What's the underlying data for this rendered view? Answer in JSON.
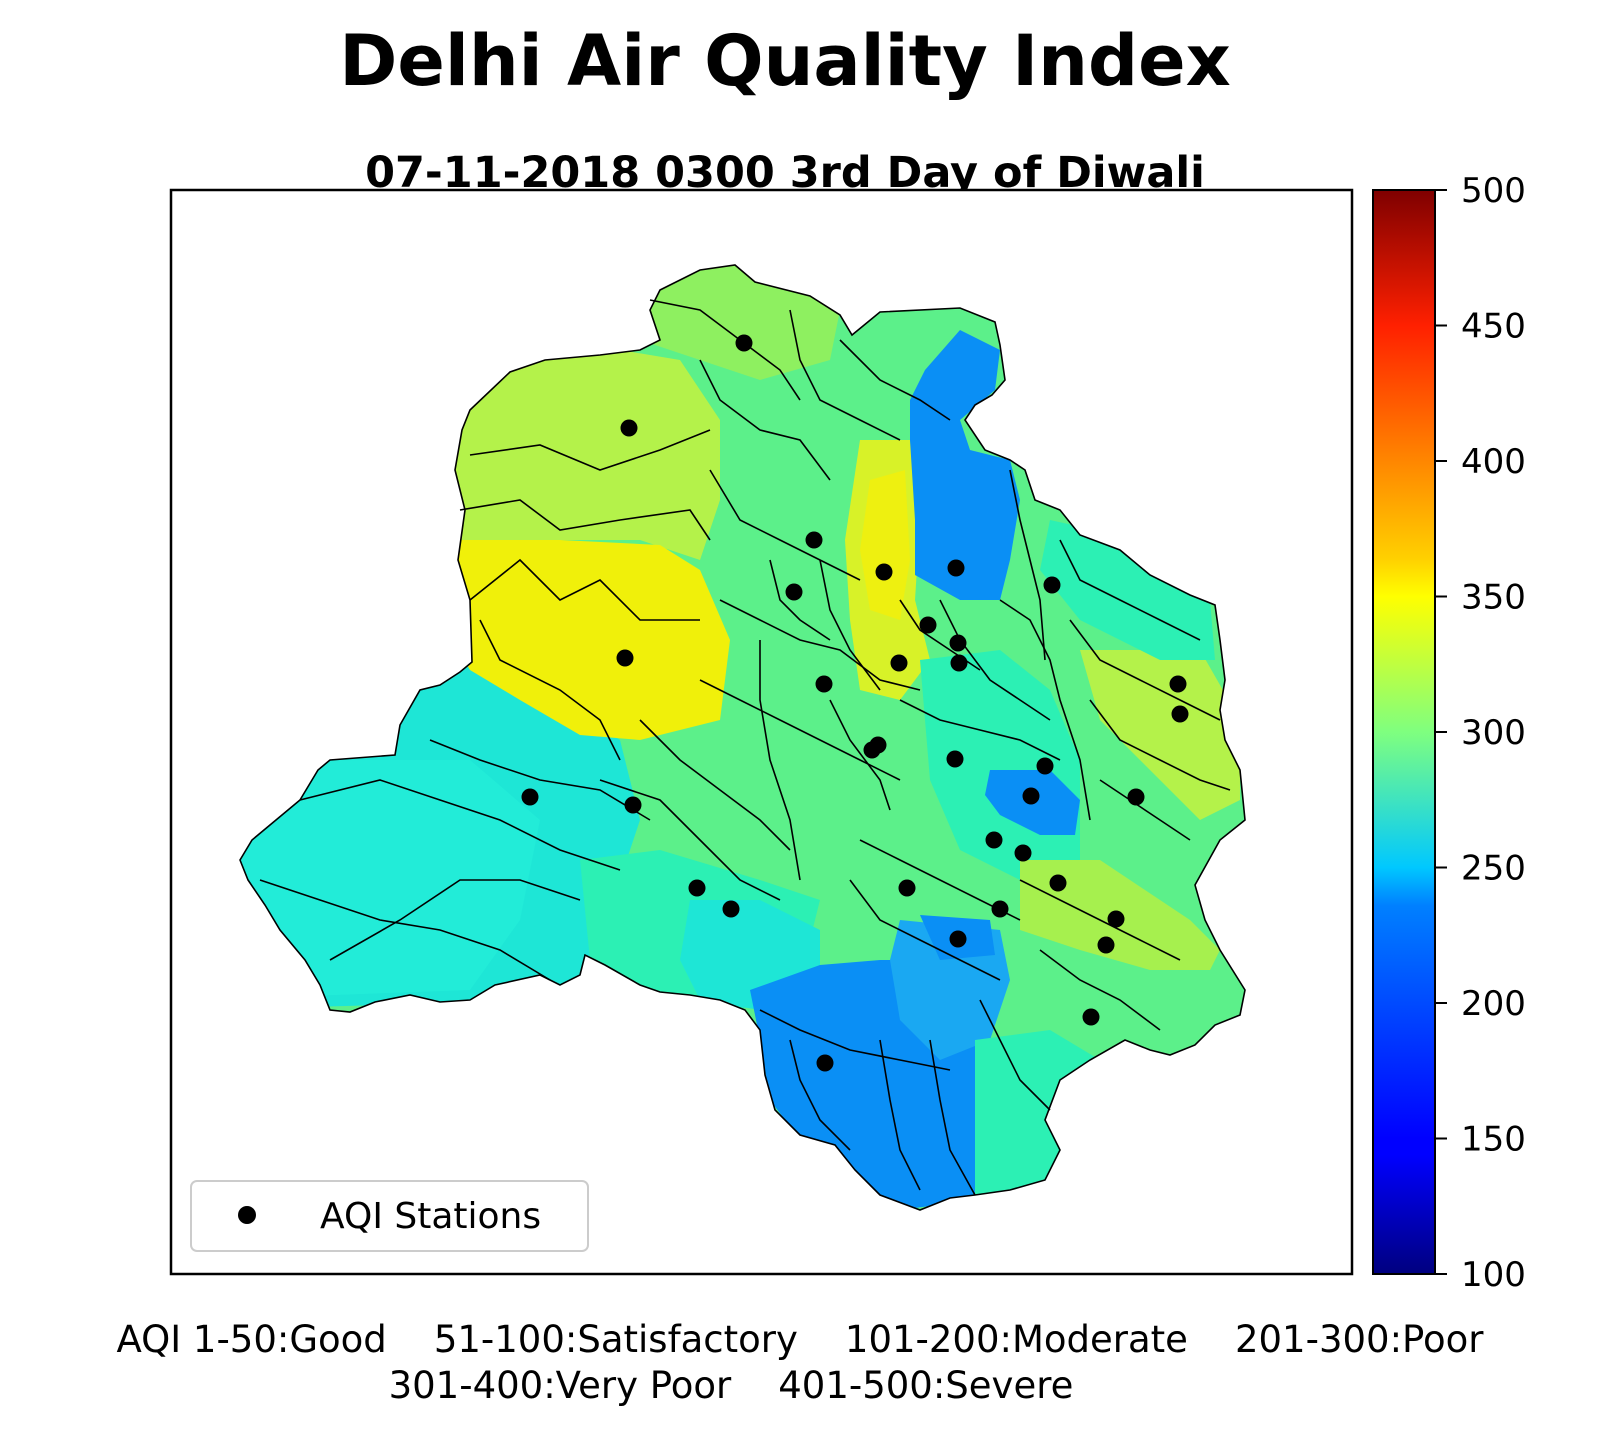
{
  "title": "Delhi Air Quality Index",
  "subtitle": "07-11-2018 0300  3rd Day of Diwali",
  "legend": {
    "label": "AQI Stations",
    "marker": "black-dot"
  },
  "colorbar": {
    "colormap": "jet",
    "min": 100,
    "max": 500,
    "ticks": [
      "100",
      "150",
      "200",
      "250",
      "300",
      "350",
      "400",
      "450",
      "500"
    ]
  },
  "aqi_categories": {
    "line1": "AQI 1-50:Good    51-100:Satisfactory    101-200:Moderate    201-300:Poor",
    "line2": "301-400:Very Poor    401-500:Severe"
  },
  "stations_count": 34,
  "colors": {
    "moderate_blue": "#0a8ff5",
    "light_blue": "#1aa8f2",
    "cyan": "#1ee6d6",
    "teal": "#2cf0b4",
    "green": "#5cf08a",
    "lime_green": "#8ef060",
    "yellow_green": "#b4f24a",
    "yellow": "#f0f00a"
  }
}
